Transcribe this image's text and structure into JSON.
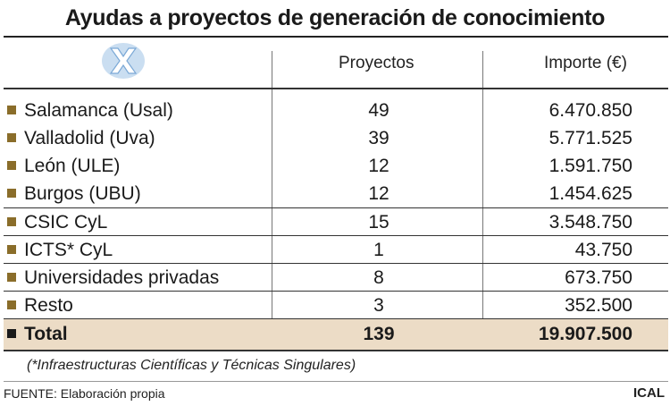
{
  "title": "Ayudas a proyectos de generación de conocimiento",
  "header": {
    "logo_icon": "x-cross-logo-icon",
    "col_projects": "Proyectos",
    "col_amount": "Importe (€)"
  },
  "rows": [
    {
      "label": "Salamanca (Usal)",
      "projects": "49",
      "amount": "6.470.850"
    },
    {
      "label": "Valladolid (Uva)",
      "projects": "39",
      "amount": "5.771.525"
    },
    {
      "label": "León (ULE)",
      "projects": "12",
      "amount": "1.591.750"
    },
    {
      "label": "Burgos (UBU)",
      "projects": "12",
      "amount": "1.454.625"
    },
    {
      "label": "CSIC CyL",
      "projects": "15",
      "amount": "3.548.750"
    },
    {
      "label": "ICTS* CyL",
      "projects": "1",
      "amount": "43.750"
    },
    {
      "label": "Universidades privadas",
      "projects": "8",
      "amount": "673.750"
    },
    {
      "label": "Resto",
      "projects": "3",
      "amount": "352.500"
    }
  ],
  "total": {
    "label": "Total",
    "projects": "139",
    "amount": "19.907.500"
  },
  "note": "(*Infraestructuras Científicas y Técnicas Singulares)",
  "source": "FUENTE: Elaboración propia",
  "brand": "ICAL",
  "colors": {
    "bullet": "#8a6d2a",
    "total_bg": "#ecdcc6"
  }
}
